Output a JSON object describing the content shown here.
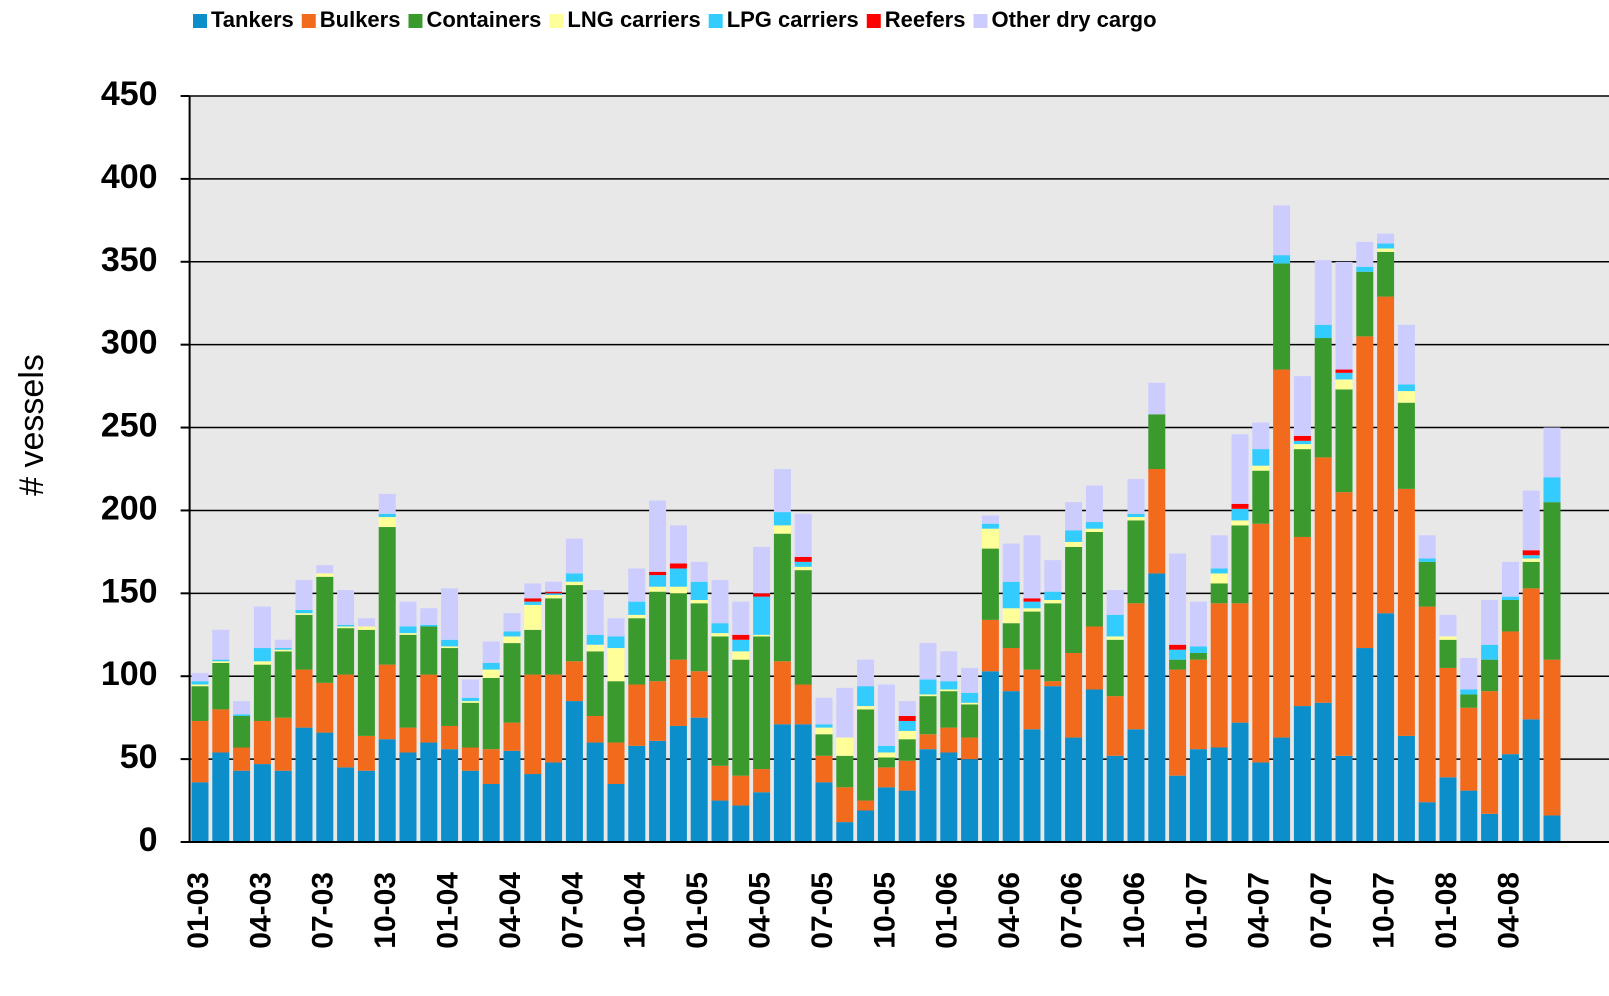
{
  "chart_data": {
    "type": "stacked_bar",
    "ylabel": "# vessels",
    "ylim": [
      0,
      450
    ],
    "yticks": [
      0,
      50,
      100,
      150,
      200,
      250,
      300,
      350,
      400,
      450
    ],
    "grid": true,
    "legend": "top",
    "categories": [
      "01-03",
      null,
      null,
      "04-03",
      null,
      null,
      "07-03",
      null,
      null,
      "10-03",
      null,
      null,
      "01-04",
      null,
      null,
      "04-04",
      null,
      null,
      "07-04",
      null,
      null,
      "10-04",
      null,
      null,
      "01-05",
      null,
      null,
      "04-05",
      null,
      null,
      "07-05",
      null,
      null,
      "10-05",
      null,
      null,
      "01-06",
      null,
      null,
      "04-06",
      null,
      null,
      "07-06",
      null,
      null,
      "10-06",
      null,
      null,
      "01-07",
      null,
      null,
      "04-07",
      null,
      null,
      "07-07",
      null,
      null,
      "10-07",
      null,
      null,
      "01-08",
      null,
      null,
      "04-08",
      null,
      null
    ],
    "series": [
      {
        "name": "Tankers",
        "color": "#0b8ec9",
        "values": [
          36,
          54,
          43,
          47,
          43,
          69,
          66,
          45,
          43,
          62,
          54,
          60,
          56,
          43,
          35,
          55,
          41,
          48,
          85,
          60,
          35,
          58,
          61,
          70,
          75,
          25,
          22,
          30,
          71,
          71,
          36,
          12,
          19,
          33,
          31,
          56,
          54,
          50,
          103,
          91,
          68,
          94,
          63,
          92,
          52,
          68,
          162,
          40,
          56,
          57,
          72,
          48,
          63,
          82,
          84,
          52,
          117,
          138,
          64,
          24,
          39,
          31,
          17,
          53,
          74,
          16
        ]
      },
      {
        "name": "Bulkers",
        "color": "#f26b1d",
        "values": [
          37,
          26,
          14,
          26,
          32,
          35,
          30,
          56,
          21,
          45,
          15,
          41,
          14,
          14,
          21,
          17,
          60,
          53,
          24,
          16,
          25,
          37,
          36,
          40,
          28,
          21,
          18,
          14,
          38,
          24,
          16,
          21,
          6,
          12,
          18,
          9,
          15,
          13,
          31,
          26,
          36,
          3,
          51,
          38,
          36,
          76,
          63,
          64,
          54,
          87,
          72,
          144,
          222,
          102,
          148,
          159,
          188,
          191,
          149,
          118,
          66,
          50,
          74,
          74,
          79,
          94
        ]
      },
      {
        "name": "Containers",
        "color": "#3a9a2e",
        "values": [
          21,
          28,
          19,
          34,
          40,
          33,
          64,
          28,
          64,
          83,
          56,
          29,
          47,
          27,
          43,
          48,
          27,
          46,
          46,
          39,
          37,
          40,
          54,
          40,
          41,
          78,
          70,
          80,
          77,
          69,
          13,
          19,
          55,
          6,
          13,
          23,
          22,
          20,
          43,
          15,
          35,
          47,
          64,
          57,
          34,
          50,
          33,
          6,
          4,
          12,
          47,
          32,
          64,
          53,
          72,
          62,
          39,
          27,
          52,
          27,
          17,
          8,
          19,
          19,
          16,
          95
        ]
      },
      {
        "name": "LNG carriers",
        "color": "#ffff99",
        "values": [
          1,
          1,
          0,
          2,
          1,
          1,
          2,
          1,
          2,
          6,
          1,
          0,
          1,
          1,
          5,
          4,
          15,
          2,
          2,
          4,
          20,
          2,
          3,
          4,
          2,
          2,
          5,
          1,
          5,
          2,
          4,
          11,
          2,
          3,
          5,
          1,
          1,
          1,
          12,
          9,
          2,
          2,
          3,
          2,
          2,
          2,
          0,
          0,
          0,
          6,
          3,
          3,
          0,
          3,
          0,
          6,
          0,
          2,
          7,
          0,
          2,
          0,
          0,
          0,
          2,
          0
        ]
      },
      {
        "name": "LPG carriers",
        "color": "#33ccff",
        "values": [
          2,
          1,
          1,
          8,
          1,
          2,
          0,
          1,
          0,
          2,
          4,
          1,
          4,
          2,
          4,
          3,
          2,
          1,
          5,
          6,
          7,
          8,
          7,
          11,
          11,
          6,
          7,
          23,
          8,
          3,
          2,
          0,
          12,
          4,
          6,
          9,
          5,
          6,
          3,
          16,
          4,
          5,
          7,
          4,
          13,
          2,
          0,
          6,
          4,
          3,
          7,
          10,
          5,
          2,
          8,
          4,
          3,
          3,
          4,
          2,
          0,
          3,
          9,
          2,
          2,
          15
        ]
      },
      {
        "name": "Reefers",
        "color": "#ff0000",
        "values": [
          0,
          0,
          0,
          0,
          0,
          0,
          0,
          0,
          0,
          0,
          0,
          0,
          0,
          0,
          0,
          0,
          2,
          1,
          0,
          0,
          0,
          0,
          2,
          3,
          0,
          0,
          3,
          2,
          0,
          3,
          0,
          0,
          0,
          0,
          3,
          0,
          0,
          0,
          0,
          0,
          2,
          0,
          0,
          0,
          0,
          0,
          0,
          3,
          0,
          0,
          3,
          0,
          0,
          3,
          0,
          2,
          0,
          0,
          0,
          0,
          0,
          0,
          0,
          0,
          3,
          0
        ]
      },
      {
        "name": "Other dry cargo",
        "color": "#ccccff",
        "values": [
          5,
          18,
          8,
          25,
          5,
          18,
          5,
          21,
          5,
          12,
          15,
          10,
          31,
          11,
          13,
          11,
          9,
          6,
          21,
          27,
          11,
          20,
          43,
          23,
          12,
          26,
          20,
          28,
          26,
          26,
          16,
          30,
          16,
          37,
          9,
          22,
          18,
          15,
          5,
          23,
          38,
          19,
          17,
          22,
          15,
          21,
          19,
          55,
          27,
          20,
          42,
          16,
          30,
          36,
          39,
          65,
          15,
          6,
          36,
          14,
          13,
          19,
          27,
          21,
          36,
          30
        ]
      }
    ]
  }
}
